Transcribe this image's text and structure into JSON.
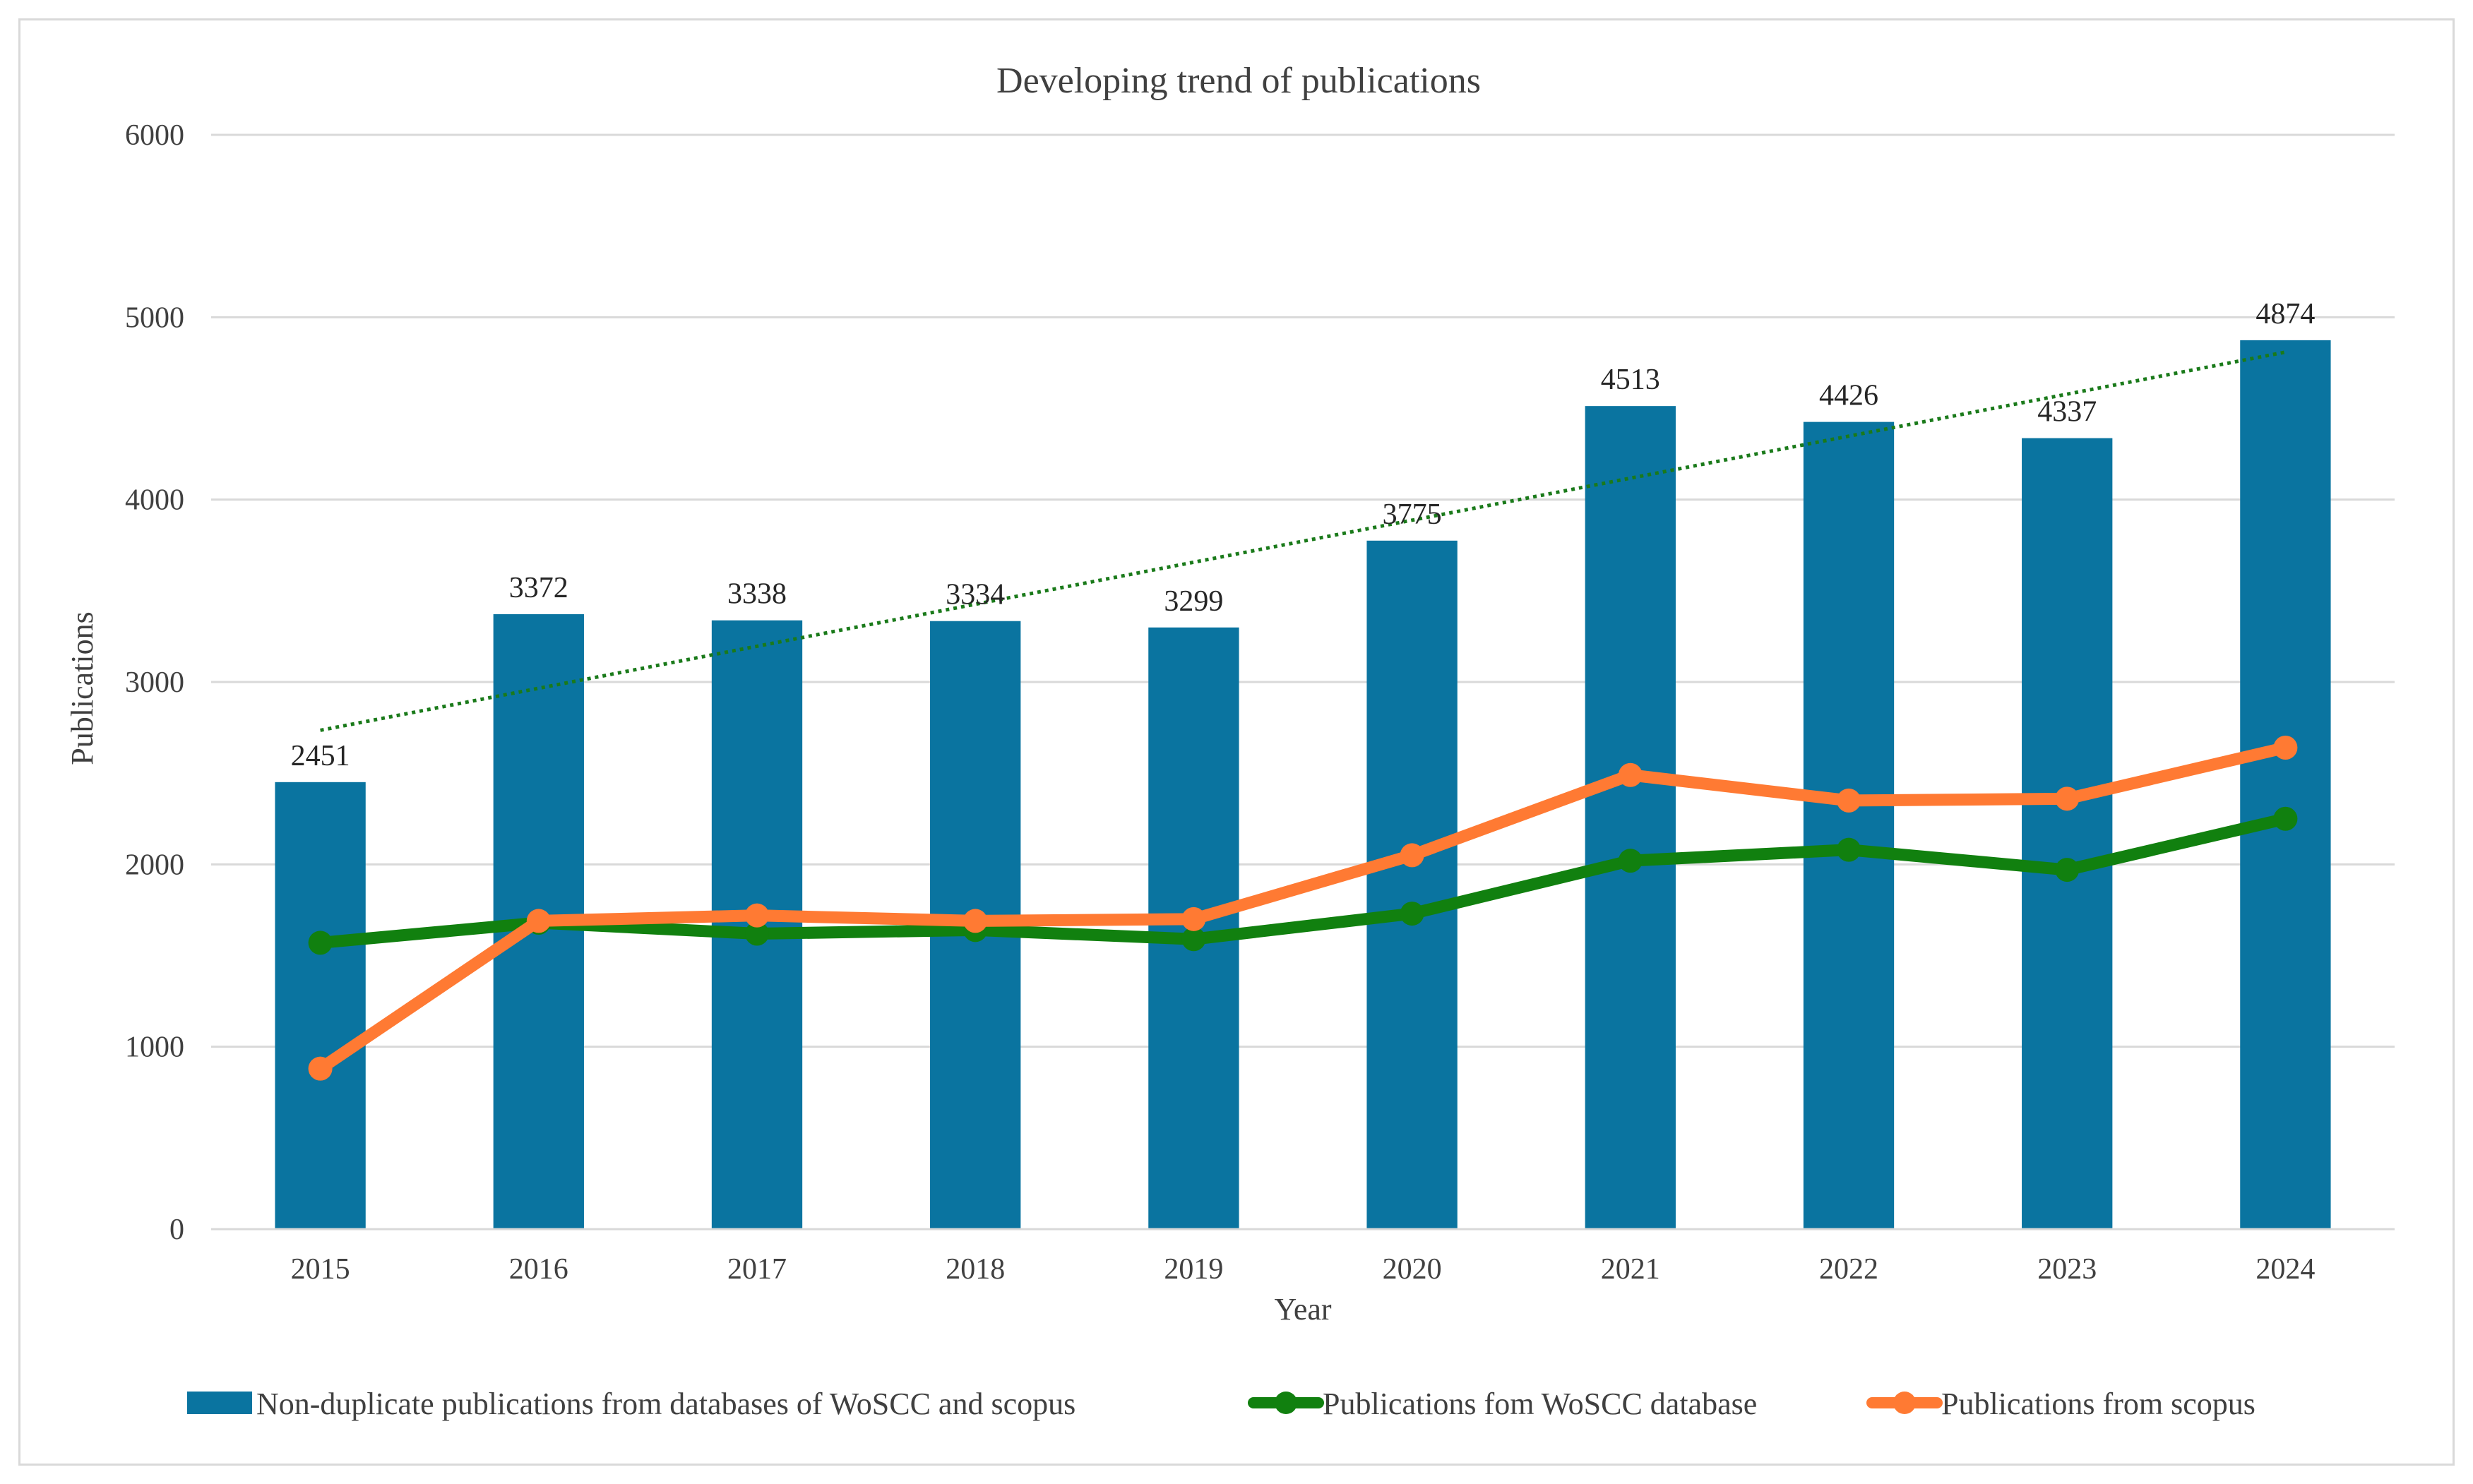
{
  "chart_data": {
    "type": "bar",
    "title": "Developing trend of publications",
    "xlabel": "Year",
    "ylabel": "Publications",
    "ylim": [
      0,
      6000
    ],
    "yticks": [
      0,
      1000,
      2000,
      3000,
      4000,
      5000,
      6000
    ],
    "grid": true,
    "legend_position": "bottom",
    "categories": [
      "2015",
      "2016",
      "2017",
      "2018",
      "2019",
      "2020",
      "2021",
      "2022",
      "2023",
      "2024"
    ],
    "series": [
      {
        "name": "Non-duplicate publications from databases of WoSCC and scopus",
        "kind": "bar",
        "color": "#0A74A0",
        "values": [
          2451,
          3372,
          3338,
          3334,
          3299,
          3775,
          4513,
          4426,
          4337,
          4874
        ],
        "data_labels": true,
        "trendline": {
          "type": "linear",
          "style": "dotted",
          "color": "#1a7a1a"
        }
      },
      {
        "name": "Publications fom WoSCC database",
        "kind": "line",
        "color": "#11800F",
        "values": [
          1570,
          1680,
          1620,
          1640,
          1590,
          1730,
          2020,
          2080,
          1970,
          2250
        ]
      },
      {
        "name": "Publications from scopus",
        "kind": "line",
        "color": "#FF7A33",
        "values": [
          880,
          1690,
          1720,
          1690,
          1700,
          2050,
          2490,
          2350,
          2360,
          2640
        ]
      }
    ]
  }
}
